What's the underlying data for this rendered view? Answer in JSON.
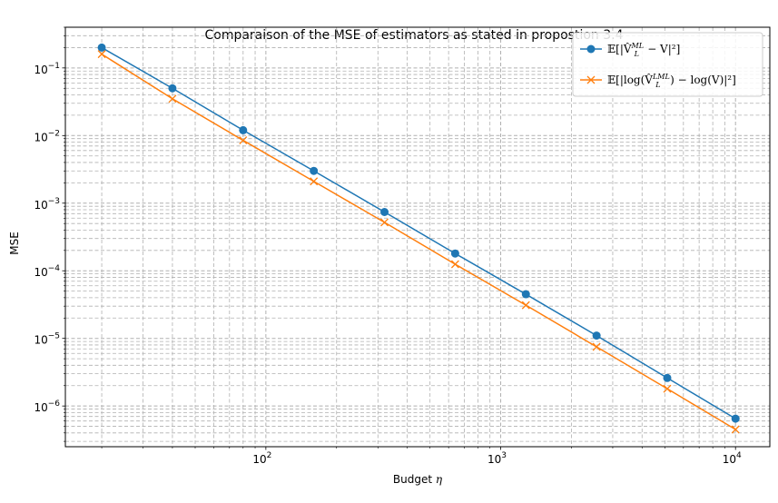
{
  "chart_data": {
    "type": "line",
    "title": "Comparaison of the MSE of estimators as stated in propostion 3.4",
    "xlabel": "Budget η",
    "ylabel": "MSE",
    "xscale": "log",
    "yscale": "log",
    "xlim": [
      14,
      14000
    ],
    "ylim": [
      2.5e-07,
      0.4
    ],
    "grid": "both major and minor, dashed",
    "legend_position": "top-right",
    "x": [
      20,
      40,
      80,
      160,
      320,
      640,
      1280,
      2560,
      5120,
      10000
    ],
    "x_tick_labels": [
      {
        "value": 100,
        "base": "10",
        "exp": "2"
      },
      {
        "value": 1000,
        "base": "10",
        "exp": "3"
      },
      {
        "value": 10000,
        "base": "10",
        "exp": "4"
      }
    ],
    "y_tick_labels": [
      {
        "value": 0.1,
        "base": "10",
        "exp": "−1"
      },
      {
        "value": 0.01,
        "base": "10",
        "exp": "−2"
      },
      {
        "value": 0.001,
        "base": "10",
        "exp": "−3"
      },
      {
        "value": 0.0001,
        "base": "10",
        "exp": "−4"
      },
      {
        "value": 1e-05,
        "base": "10",
        "exp": "−5"
      },
      {
        "value": 1e-06,
        "base": "10",
        "exp": "−6"
      }
    ],
    "series": [
      {
        "name": "𝔼[|V̂_L^{ML} − V|²]",
        "color": "#1f77b4",
        "marker": "circle",
        "values": [
          0.2,
          0.05,
          0.012,
          0.003,
          0.00074,
          0.00018,
          4.5e-05,
          1.1e-05,
          2.6e-06,
          6.5e-07
        ]
      },
      {
        "name": "𝔼[|log(V̂_L^{LML}) − log(V)|²]",
        "color": "#ff7f0e",
        "marker": "x",
        "values": [
          0.16,
          0.035,
          0.0085,
          0.0021,
          0.00052,
          0.000125,
          3.1e-05,
          7.5e-06,
          1.8e-06,
          4.5e-07
        ]
      }
    ]
  }
}
